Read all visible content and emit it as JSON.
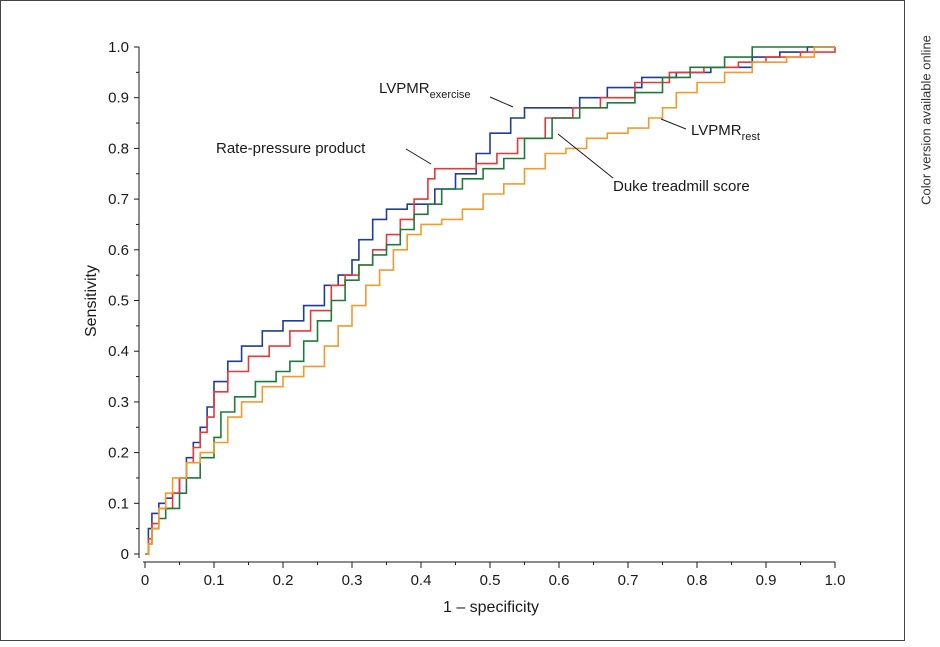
{
  "side_note": "Color version available online",
  "chart_data": {
    "type": "line",
    "title": "",
    "xlabel": "1 – specificity",
    "ylabel": "Sensitivity",
    "xlim": [
      0,
      1
    ],
    "ylim": [
      0,
      1
    ],
    "x_ticks": [
      "0",
      "0.1",
      "0.2",
      "0.3",
      "0.4",
      "0.5",
      "0.6",
      "0.7",
      "0.8",
      "0.9",
      "1.0"
    ],
    "y_ticks": [
      "0",
      "0.1",
      "0.2",
      "0.3",
      "0.4",
      "0.5",
      "0.6",
      "0.7",
      "0.8",
      "0.9",
      "1.0"
    ],
    "grid": false,
    "annotations": {
      "lvpmr_exercise": {
        "main": "LVPMR",
        "sub": "exercise"
      },
      "rate_pressure": {
        "main": "Rate-pressure product"
      },
      "lvpmr_rest": {
        "main": "LVPMR",
        "sub": "rest"
      },
      "duke": {
        "main": "Duke treadmill score"
      }
    },
    "series": [
      {
        "name": "LVPMR exercise",
        "color": "#1f3d99",
        "points": [
          [
            0,
            0
          ],
          [
            0.005,
            0.05
          ],
          [
            0.01,
            0.08
          ],
          [
            0.02,
            0.1
          ],
          [
            0.03,
            0.11
          ],
          [
            0.04,
            0.12
          ],
          [
            0.05,
            0.15
          ],
          [
            0.06,
            0.19
          ],
          [
            0.07,
            0.22
          ],
          [
            0.08,
            0.25
          ],
          [
            0.09,
            0.29
          ],
          [
            0.1,
            0.34
          ],
          [
            0.12,
            0.38
          ],
          [
            0.14,
            0.41
          ],
          [
            0.17,
            0.44
          ],
          [
            0.2,
            0.46
          ],
          [
            0.23,
            0.49
          ],
          [
            0.26,
            0.53
          ],
          [
            0.28,
            0.55
          ],
          [
            0.3,
            0.58
          ],
          [
            0.31,
            0.62
          ],
          [
            0.33,
            0.66
          ],
          [
            0.35,
            0.68
          ],
          [
            0.38,
            0.69
          ],
          [
            0.4,
            0.69
          ],
          [
            0.42,
            0.72
          ],
          [
            0.45,
            0.75
          ],
          [
            0.48,
            0.79
          ],
          [
            0.5,
            0.83
          ],
          [
            0.53,
            0.86
          ],
          [
            0.55,
            0.88
          ],
          [
            0.6,
            0.88
          ],
          [
            0.63,
            0.9
          ],
          [
            0.67,
            0.92
          ],
          [
            0.72,
            0.94
          ],
          [
            0.77,
            0.95
          ],
          [
            0.82,
            0.96
          ],
          [
            0.88,
            0.98
          ],
          [
            0.92,
            0.99
          ],
          [
            0.96,
            1.0
          ],
          [
            1.0,
            1.0
          ]
        ]
      },
      {
        "name": "Rate-pressure product",
        "color": "#e8393a",
        "points": [
          [
            0,
            0
          ],
          [
            0.005,
            0.03
          ],
          [
            0.01,
            0.06
          ],
          [
            0.02,
            0.09
          ],
          [
            0.04,
            0.12
          ],
          [
            0.05,
            0.15
          ],
          [
            0.06,
            0.18
          ],
          [
            0.07,
            0.21
          ],
          [
            0.08,
            0.24
          ],
          [
            0.09,
            0.27
          ],
          [
            0.1,
            0.32
          ],
          [
            0.12,
            0.36
          ],
          [
            0.15,
            0.39
          ],
          [
            0.18,
            0.41
          ],
          [
            0.21,
            0.44
          ],
          [
            0.24,
            0.48
          ],
          [
            0.27,
            0.53
          ],
          [
            0.29,
            0.55
          ],
          [
            0.31,
            0.57
          ],
          [
            0.33,
            0.6
          ],
          [
            0.35,
            0.63
          ],
          [
            0.37,
            0.66
          ],
          [
            0.39,
            0.7
          ],
          [
            0.41,
            0.74
          ],
          [
            0.42,
            0.76
          ],
          [
            0.45,
            0.76
          ],
          [
            0.48,
            0.77
          ],
          [
            0.51,
            0.79
          ],
          [
            0.54,
            0.82
          ],
          [
            0.58,
            0.86
          ],
          [
            0.62,
            0.88
          ],
          [
            0.66,
            0.9
          ],
          [
            0.71,
            0.93
          ],
          [
            0.76,
            0.95
          ],
          [
            0.81,
            0.96
          ],
          [
            0.86,
            0.97
          ],
          [
            0.9,
            0.98
          ],
          [
            0.95,
            0.99
          ],
          [
            1.0,
            1.0
          ]
        ]
      },
      {
        "name": "Duke treadmill score",
        "color": "#1f7a3a",
        "points": [
          [
            0,
            0
          ],
          [
            0.005,
            0.02
          ],
          [
            0.01,
            0.05
          ],
          [
            0.02,
            0.07
          ],
          [
            0.03,
            0.09
          ],
          [
            0.05,
            0.12
          ],
          [
            0.06,
            0.15
          ],
          [
            0.08,
            0.19
          ],
          [
            0.1,
            0.23
          ],
          [
            0.11,
            0.28
          ],
          [
            0.13,
            0.31
          ],
          [
            0.16,
            0.34
          ],
          [
            0.19,
            0.36
          ],
          [
            0.21,
            0.38
          ],
          [
            0.23,
            0.42
          ],
          [
            0.25,
            0.46
          ],
          [
            0.27,
            0.5
          ],
          [
            0.29,
            0.54
          ],
          [
            0.31,
            0.57
          ],
          [
            0.33,
            0.59
          ],
          [
            0.35,
            0.61
          ],
          [
            0.37,
            0.64
          ],
          [
            0.39,
            0.67
          ],
          [
            0.41,
            0.69
          ],
          [
            0.43,
            0.72
          ],
          [
            0.46,
            0.74
          ],
          [
            0.49,
            0.76
          ],
          [
            0.52,
            0.78
          ],
          [
            0.55,
            0.82
          ],
          [
            0.59,
            0.86
          ],
          [
            0.63,
            0.88
          ],
          [
            0.67,
            0.89
          ],
          [
            0.71,
            0.91
          ],
          [
            0.75,
            0.94
          ],
          [
            0.79,
            0.96
          ],
          [
            0.84,
            0.98
          ],
          [
            0.88,
            1.0
          ],
          [
            1.0,
            1.0
          ]
        ]
      },
      {
        "name": "LVPMR rest",
        "color": "#f39a2c",
        "points": [
          [
            0,
            0
          ],
          [
            0.005,
            0.02
          ],
          [
            0.01,
            0.05
          ],
          [
            0.02,
            0.09
          ],
          [
            0.03,
            0.12
          ],
          [
            0.04,
            0.15
          ],
          [
            0.06,
            0.18
          ],
          [
            0.08,
            0.2
          ],
          [
            0.1,
            0.22
          ],
          [
            0.12,
            0.27
          ],
          [
            0.14,
            0.3
          ],
          [
            0.17,
            0.33
          ],
          [
            0.2,
            0.35
          ],
          [
            0.23,
            0.37
          ],
          [
            0.26,
            0.41
          ],
          [
            0.28,
            0.45
          ],
          [
            0.3,
            0.49
          ],
          [
            0.32,
            0.53
          ],
          [
            0.34,
            0.56
          ],
          [
            0.36,
            0.6
          ],
          [
            0.38,
            0.63
          ],
          [
            0.4,
            0.65
          ],
          [
            0.43,
            0.66
          ],
          [
            0.46,
            0.68
          ],
          [
            0.49,
            0.71
          ],
          [
            0.52,
            0.73
          ],
          [
            0.55,
            0.76
          ],
          [
            0.58,
            0.79
          ],
          [
            0.61,
            0.8
          ],
          [
            0.64,
            0.82
          ],
          [
            0.67,
            0.83
          ],
          [
            0.7,
            0.84
          ],
          [
            0.73,
            0.86
          ],
          [
            0.75,
            0.88
          ],
          [
            0.77,
            0.91
          ],
          [
            0.8,
            0.93
          ],
          [
            0.84,
            0.95
          ],
          [
            0.88,
            0.97
          ],
          [
            0.93,
            0.98
          ],
          [
            0.97,
            1.0
          ],
          [
            1.0,
            1.0
          ]
        ]
      }
    ]
  }
}
